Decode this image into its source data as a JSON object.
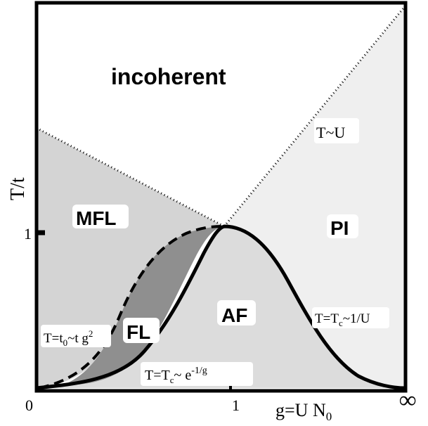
{
  "axes": {
    "y_label": "T/t",
    "x_label_main": "g=U N",
    "x_label_sub": "0",
    "x_tick_0": "0",
    "x_tick_1": "1",
    "x_tick_inf": "∞",
    "y_tick_1": "1"
  },
  "regions": {
    "incoherent": "incoherent",
    "mfl": "MFL",
    "pi": "PI",
    "fl": "FL",
    "af": "AF"
  },
  "annotations": {
    "t_u": "T~U",
    "t0_prefix": "T=t",
    "t0_sub": "0",
    "t0_mid": "~t g",
    "t0_sup": "2",
    "tc_right_prefix": "T=T",
    "tc_right_sub": "c",
    "tc_right_rest": "~1/U",
    "tc_bottom_prefix": "T=T",
    "tc_bottom_sub": "c",
    "tc_bottom_mid": "~ e",
    "tc_bottom_sup": "-1/g"
  },
  "colors": {
    "background": "#ffffff",
    "mfl_region": "#d4d4d4",
    "fl_region": "#8f8f8f",
    "af_region": "#dcdcdc",
    "pi_region": "#efefef",
    "label_box": "#ffffff",
    "line": "#000000"
  }
}
